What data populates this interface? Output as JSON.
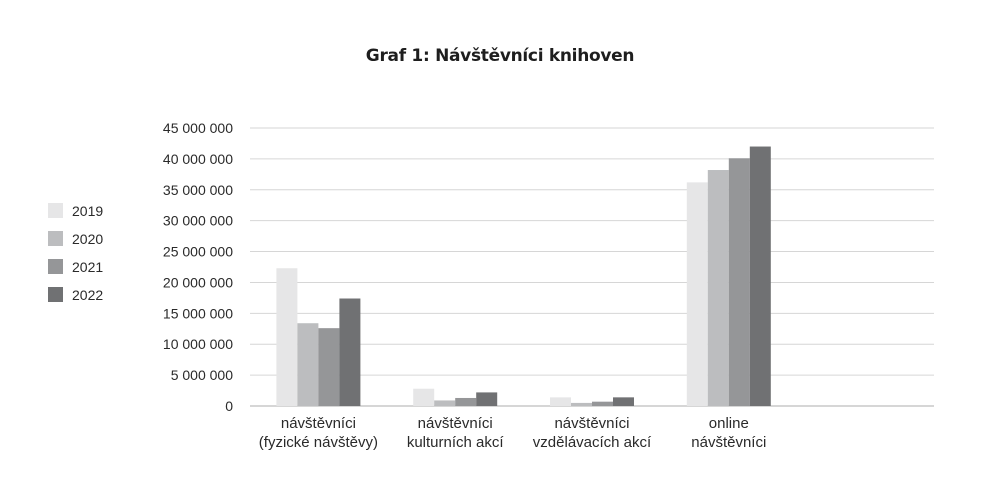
{
  "chart_data": {
    "type": "bar",
    "title": "Graf 1: Návštěvníci knihoven",
    "xlabel": "",
    "ylabel": "",
    "ylim": [
      0,
      45000000
    ],
    "y_ticks": [
      0,
      5000000,
      10000000,
      15000000,
      20000000,
      25000000,
      30000000,
      35000000,
      40000000,
      45000000
    ],
    "y_tick_labels": [
      "0",
      "5 000 000",
      "10 000 000",
      "15 000 000",
      "20 000 000",
      "25 000 000",
      "30 000 000",
      "35 000 000",
      "40 000 000",
      "45 000 000"
    ],
    "grid": true,
    "legend_position": "left",
    "categories": [
      [
        "návštěvníci",
        "(fyzické návštěvy)"
      ],
      [
        "návštěvníci",
        "kulturních akcí"
      ],
      [
        "návštěvníci",
        "vzdělávacích akcí"
      ],
      [
        "online",
        "návštěvníci"
      ],
      []
    ],
    "series": [
      {
        "name": "2019",
        "color": "#e6e6e7",
        "values": [
          22300000,
          2800000,
          1400000,
          36200000,
          null
        ]
      },
      {
        "name": "2020",
        "color": "#bcbdbf",
        "values": [
          13400000,
          900000,
          500000,
          38200000,
          null
        ]
      },
      {
        "name": "2021",
        "color": "#959698",
        "values": [
          12600000,
          1300000,
          700000,
          40100000,
          null
        ]
      },
      {
        "name": "2022",
        "color": "#707173",
        "values": [
          17400000,
          2200000,
          1400000,
          42000000,
          null
        ]
      }
    ]
  }
}
